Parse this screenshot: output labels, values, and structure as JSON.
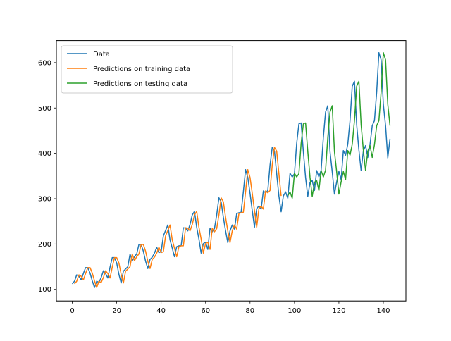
{
  "chart_data": {
    "type": "line",
    "title": "",
    "xlabel": "",
    "ylabel": "",
    "xlim": [
      -7.15,
      150.15
    ],
    "ylim": [
      74.4,
      648.6
    ],
    "x_ticks": [
      0,
      20,
      40,
      60,
      80,
      100,
      120,
      140
    ],
    "y_ticks": [
      100,
      200,
      300,
      400,
      500,
      600
    ],
    "grid": false,
    "legend_position": "upper-left",
    "series": [
      {
        "name": "Data",
        "color": "#1f77b4",
        "x_start": 0,
        "values": [
          112,
          118,
          132,
          129,
          121,
          135,
          148,
          148,
          136,
          119,
          104,
          118,
          115,
          126,
          141,
          135,
          125,
          149,
          170,
          170,
          158,
          133,
          114,
          140,
          145,
          150,
          178,
          163,
          172,
          178,
          199,
          199,
          184,
          162,
          146,
          166,
          171,
          180,
          193,
          181,
          183,
          218,
          230,
          242,
          209,
          191,
          172,
          194,
          196,
          196,
          236,
          235,
          229,
          243,
          264,
          272,
          237,
          211,
          180,
          201,
          204,
          188,
          235,
          227,
          234,
          264,
          302,
          293,
          259,
          229,
          203,
          229,
          242,
          233,
          267,
          269,
          270,
          315,
          364,
          347,
          312,
          274,
          237,
          278,
          284,
          277,
          317,
          313,
          318,
          374,
          413,
          405,
          355,
          306,
          271,
          306,
          315,
          301,
          356,
          348,
          355,
          422,
          465,
          467,
          404,
          347,
          305,
          336,
          340,
          318,
          362,
          348,
          363,
          435,
          491,
          505,
          404,
          359,
          310,
          337,
          360,
          342,
          406,
          396,
          420,
          472,
          548,
          559,
          463,
          407,
          362,
          405,
          417,
          391,
          419,
          461,
          472,
          535,
          622,
          606,
          508,
          461,
          390,
          432
        ]
      },
      {
        "name": "Predictions on training data",
        "color": "#ff7f0e",
        "x_start": 1,
        "values": [
          112,
          118,
          132,
          129,
          121,
          135,
          148,
          148,
          136,
          119,
          104,
          118,
          115,
          126,
          141,
          135,
          125,
          149,
          170,
          170,
          158,
          133,
          114,
          140,
          145,
          150,
          178,
          163,
          172,
          178,
          199,
          199,
          184,
          162,
          146,
          166,
          171,
          180,
          193,
          181,
          183,
          218,
          230,
          242,
          209,
          191,
          172,
          194,
          196,
          196,
          236,
          235,
          229,
          243,
          264,
          272,
          237,
          211,
          180,
          201,
          204,
          188,
          235,
          227,
          234,
          264,
          302,
          293,
          259,
          229,
          203,
          229,
          242,
          233,
          267,
          269,
          270,
          315,
          364,
          347,
          312,
          274,
          237,
          278,
          284,
          277,
          317,
          313,
          318,
          374,
          413,
          405,
          355,
          306
        ]
      },
      {
        "name": "Predictions on testing data",
        "color": "#2ca02c",
        "x_start": 97,
        "values": [
          306,
          315,
          301,
          356,
          348,
          355,
          422,
          465,
          467,
          404,
          347,
          305,
          336,
          340,
          318,
          362,
          348,
          363,
          435,
          491,
          505,
          404,
          359,
          310,
          337,
          360,
          342,
          406,
          396,
          420,
          472,
          548,
          559,
          463,
          407,
          362,
          405,
          417,
          391,
          419,
          461,
          472,
          535,
          622,
          606,
          508,
          461
        ]
      }
    ]
  }
}
